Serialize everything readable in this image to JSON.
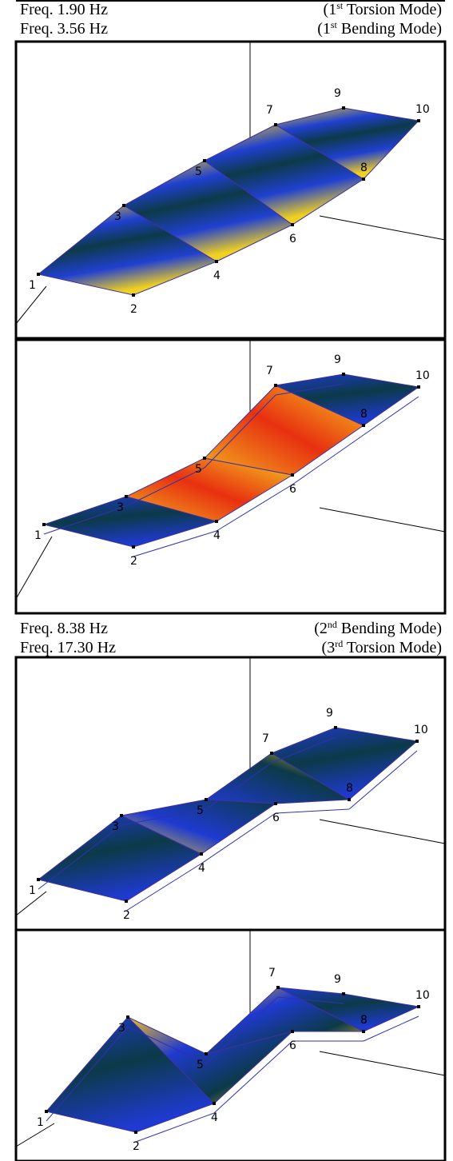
{
  "captions": [
    {
      "lines": [
        {
          "freq": "Freq. 1.90 Hz",
          "mode_open": "(1",
          "mode_sup": "st",
          "mode_rest": " Torsion Mode)"
        },
        {
          "freq": "Freq. 3.56 Hz",
          "mode_open": "(1",
          "mode_sup": "st",
          "mode_rest": " Bending Mode)"
        }
      ]
    },
    {
      "lines": [
        {
          "freq": "Freq. 8.38 Hz",
          "mode_open": "(2",
          "mode_sup": "nd",
          "mode_rest": " Bending Mode)"
        },
        {
          "freq": "Freq. 17.30 Hz",
          "mode_open": "(3",
          "mode_sup": "rd",
          "mode_rest": " Torsion Mode)"
        }
      ]
    }
  ],
  "node_labels": [
    "1",
    "2",
    "3",
    "4",
    "5",
    "6",
    "7",
    "8",
    "9",
    "10"
  ]
}
